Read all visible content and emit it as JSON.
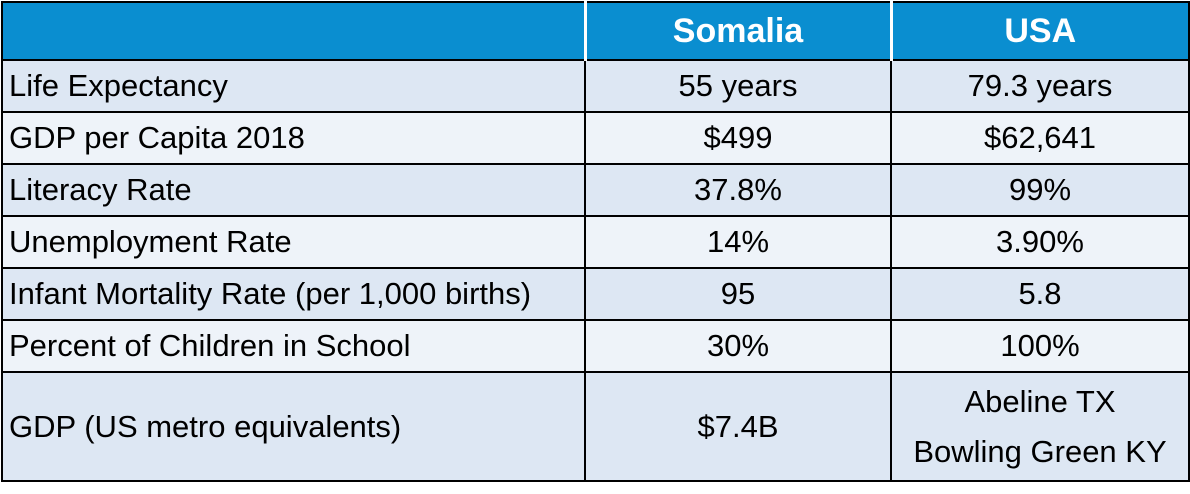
{
  "table": {
    "columns": [
      "",
      "Somalia",
      "USA"
    ],
    "rows": [
      {
        "label": "Life Expectancy",
        "somalia": "55 years",
        "usa": "79.3 years"
      },
      {
        "label": "GDP per Capita 2018",
        "somalia": "$499",
        "usa": "$62,641"
      },
      {
        "label": "Literacy Rate",
        "somalia": "37.8%",
        "usa": "99%"
      },
      {
        "label": "Unemployment Rate",
        "somalia": "14%",
        "usa": "3.90%"
      },
      {
        "label": "Infant Mortality Rate (per 1,000 births)",
        "somalia": "95",
        "usa": "5.8"
      },
      {
        "label": "Percent of Children in School",
        "somalia": "30%",
        "usa": "100%"
      },
      {
        "label": "GDP (US metro equivalents)",
        "somalia": "$7.4B",
        "usa_lines": [
          "Abeline TX",
          "Bowling Green KY"
        ]
      }
    ]
  },
  "colors": {
    "header_bg": "#0a8ed0",
    "header_text": "#ffffff",
    "row_shade": "#dde7f3",
    "row_plain": "#eef3f9",
    "border": "#000000"
  }
}
